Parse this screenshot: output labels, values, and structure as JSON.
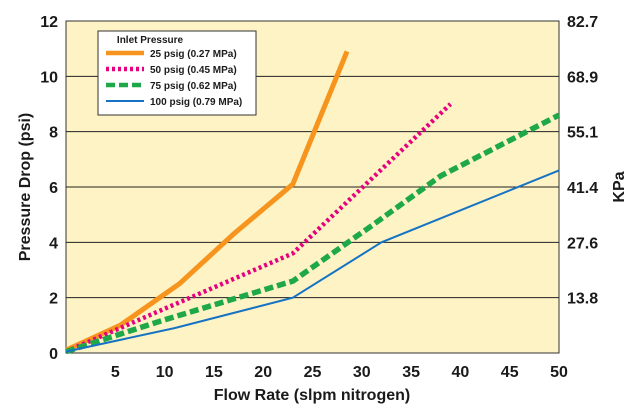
{
  "chart_data": {
    "type": "line",
    "title": "",
    "xlabel": "Flow Rate (slpm nitrogen)",
    "ylabel": "Pressure Drop (psi)",
    "y2label": "KPa",
    "xlim": [
      0,
      50
    ],
    "ylim": [
      0,
      12
    ],
    "x_ticks": [
      "5",
      "10",
      "15",
      "20",
      "25",
      "30",
      "35",
      "40",
      "45",
      "50"
    ],
    "y_ticks": [
      "0",
      "2",
      "4",
      "6",
      "8",
      "10",
      "12"
    ],
    "y2_ticks": [
      "13.8",
      "27.6",
      "41.4",
      "55.1",
      "68.9",
      "82.7"
    ],
    "y2_tick_positions_psi": [
      2,
      4,
      6,
      8,
      10,
      12
    ],
    "grid": "horizontal",
    "plot_background": "#fdf3c4",
    "legend": {
      "title": "Inlet Pressure",
      "placement": "top-left"
    },
    "series": [
      {
        "name": "25 psig (0.27 MPa)",
        "color": "#f7941d",
        "dash": "solid",
        "x": [
          0,
          5.5,
          11.5,
          17,
          23,
          28.5
        ],
        "y": [
          0.1,
          1.0,
          2.5,
          4.3,
          6.1,
          10.9
        ]
      },
      {
        "name": "50 psig (0.45 MPa)",
        "color": "#e6007e",
        "dash": "dotted",
        "x": [
          0,
          10,
          23,
          39
        ],
        "y": [
          0.05,
          1.6,
          3.6,
          9.0
        ]
      },
      {
        "name": "75 psig (0.62 MPa)",
        "color": "#1fa84a",
        "dash": "dashed",
        "x": [
          0,
          10,
          23,
          31,
          38,
          50
        ],
        "y": [
          0.05,
          1.2,
          2.6,
          4.6,
          6.4,
          8.6
        ]
      },
      {
        "name": "100 psig (0.79 MPa)",
        "color": "#1673c4",
        "dash": "solid",
        "x": [
          0,
          11,
          23,
          32,
          50
        ],
        "y": [
          0.05,
          0.9,
          2.0,
          4.0,
          6.6
        ]
      }
    ]
  }
}
